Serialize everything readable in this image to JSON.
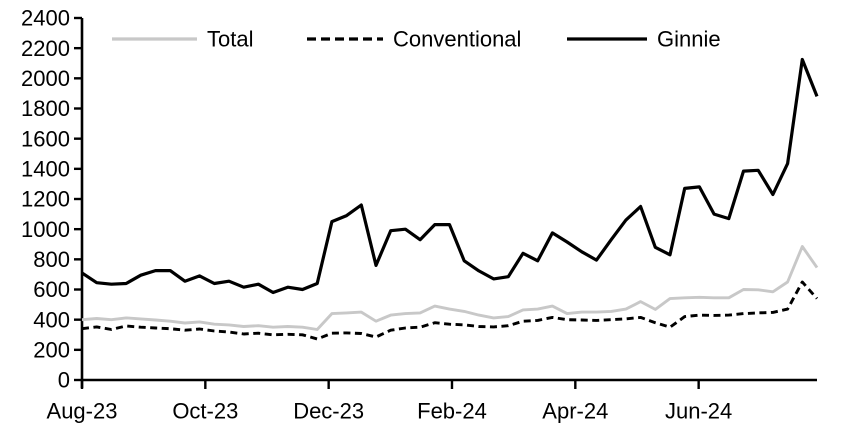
{
  "chart_data": {
    "type": "line",
    "title": "",
    "xlabel": "",
    "ylabel": "",
    "ylim": [
      0,
      2400
    ],
    "y_tick_step": 200,
    "y_tick_labels": [
      "0",
      "200",
      "400",
      "600",
      "800",
      "1000",
      "1200",
      "1400",
      "1600",
      "1800",
      "2000",
      "2200",
      "2400"
    ],
    "x_tick_labels": [
      "Aug-23",
      "Oct-23",
      "Dec-23",
      "Feb-24",
      "Apr-24",
      "Jun-24"
    ],
    "x_frequency": "weekly",
    "x_range_note": "weekly points from Aug-23 through early Aug-24",
    "grid": false,
    "legend_position": "top",
    "axis_color": "#000000",
    "background_color": "#ffffff",
    "series": [
      {
        "name": "Total",
        "color": "#c8c8c8",
        "style": "solid",
        "values": [
          400,
          408,
          400,
          412,
          405,
          398,
          390,
          378,
          385,
          370,
          365,
          355,
          360,
          350,
          355,
          350,
          335,
          440,
          445,
          450,
          390,
          430,
          440,
          445,
          490,
          470,
          455,
          430,
          412,
          420,
          465,
          470,
          490,
          440,
          450,
          450,
          455,
          470,
          520,
          468,
          540,
          545,
          548,
          545,
          545,
          600,
          598,
          585,
          650,
          885,
          745
        ]
      },
      {
        "name": "Conventional",
        "color": "#000000",
        "style": "dashed",
        "values": [
          340,
          352,
          335,
          358,
          350,
          345,
          340,
          330,
          338,
          325,
          318,
          305,
          310,
          300,
          303,
          300,
          272,
          310,
          312,
          308,
          285,
          330,
          345,
          350,
          380,
          370,
          365,
          355,
          352,
          360,
          390,
          395,
          415,
          400,
          398,
          395,
          400,
          405,
          415,
          380,
          350,
          420,
          430,
          428,
          430,
          440,
          445,
          448,
          470,
          650,
          540
        ]
      },
      {
        "name": "Ginnie",
        "color": "#000000",
        "style": "solid",
        "values": [
          710,
          645,
          635,
          640,
          695,
          725,
          725,
          655,
          690,
          640,
          655,
          615,
          635,
          580,
          615,
          600,
          640,
          1050,
          1090,
          1160,
          760,
          990,
          1000,
          930,
          1030,
          1030,
          790,
          723,
          670,
          685,
          840,
          790,
          975,
          915,
          850,
          795,
          930,
          1060,
          1150,
          880,
          830,
          1270,
          1280,
          1100,
          1070,
          1385,
          1390,
          1230,
          1435,
          2125,
          1880
        ]
      }
    ],
    "legend": {
      "items": [
        "Total",
        "Conventional",
        "Ginnie"
      ]
    }
  }
}
